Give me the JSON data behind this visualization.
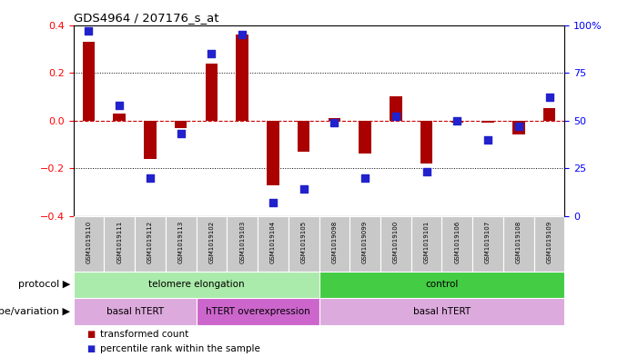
{
  "title": "GDS4964 / 207176_s_at",
  "samples": [
    "GSM1019110",
    "GSM1019111",
    "GSM1019112",
    "GSM1019113",
    "GSM1019102",
    "GSM1019103",
    "GSM1019104",
    "GSM1019105",
    "GSM1019098",
    "GSM1019099",
    "GSM1019100",
    "GSM1019101",
    "GSM1019106",
    "GSM1019107",
    "GSM1019108",
    "GSM1019109"
  ],
  "transformed_count": [
    0.33,
    0.03,
    -0.16,
    -0.03,
    0.24,
    0.36,
    -0.27,
    -0.13,
    0.01,
    -0.14,
    0.1,
    -0.18,
    -0.01,
    -0.01,
    -0.06,
    0.05
  ],
  "percentile_rank": [
    97,
    58,
    20,
    43,
    85,
    95,
    7,
    14,
    49,
    20,
    52,
    23,
    50,
    40,
    47,
    62
  ],
  "ylim_left": [
    -0.4,
    0.4
  ],
  "ylim_right": [
    0,
    100
  ],
  "bar_color": "#aa0000",
  "dot_color": "#2222cc",
  "zero_line_color": "#cc0000",
  "protocol_groups": [
    {
      "label": "telomere elongation",
      "start": 0,
      "end": 8,
      "color": "#aaeaaa"
    },
    {
      "label": "control",
      "start": 8,
      "end": 16,
      "color": "#44cc44"
    }
  ],
  "genotype_groups": [
    {
      "label": "basal hTERT",
      "start": 0,
      "end": 4,
      "color": "#ddaadd"
    },
    {
      "label": "hTERT overexpression",
      "start": 4,
      "end": 8,
      "color": "#cc66cc"
    },
    {
      "label": "basal hTERT",
      "start": 8,
      "end": 16,
      "color": "#ddaadd"
    }
  ],
  "legend_red_label": "transformed count",
  "legend_blue_label": "percentile rank within the sample",
  "protocol_label": "protocol",
  "genotype_label": "genotype/variation",
  "bg_color": "#ffffff",
  "tick_bg_color": "#c8c8c8",
  "bar_width": 0.4,
  "dot_size": 28
}
